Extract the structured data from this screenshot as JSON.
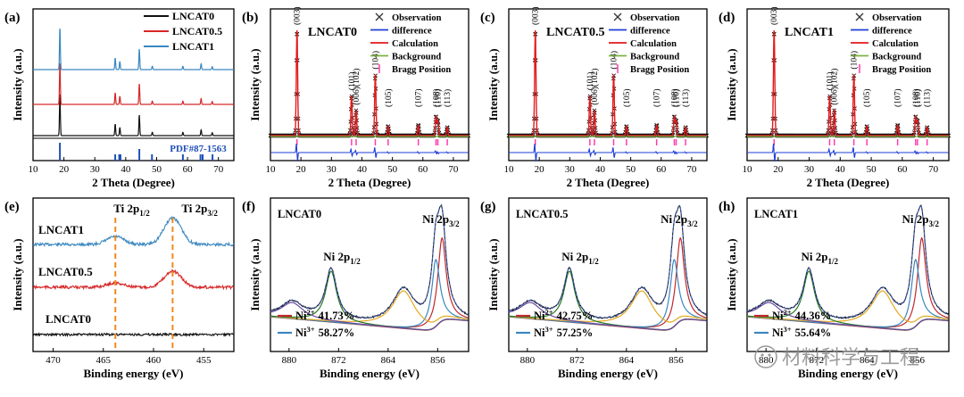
{
  "chart_data": [
    {
      "id": "a",
      "panel_label": "(a)",
      "type": "line",
      "xlabel": "2 Theta (Degree)",
      "ylabel": "Intensity (a.u.)",
      "xlim": [
        10,
        75
      ],
      "xticks": [
        10,
        20,
        30,
        40,
        50,
        60,
        70
      ],
      "legend": [
        "LNCAT0",
        "LNCAT0.5",
        "LNCAT1"
      ],
      "legend_colors": [
        "#111111",
        "#d62728",
        "#3a87c0"
      ],
      "reference_label": "PDF#87-1563",
      "reference_peaks": [
        18.7,
        36.6,
        37.9,
        38.3,
        44.4,
        48.5,
        58.5,
        64.2,
        64.9,
        68.1
      ],
      "series": [
        {
          "name": "LNCAT0",
          "color": "#111111",
          "peaks": [
            [
              18.7,
              1
            ],
            [
              36.6,
              0.28
            ],
            [
              38.1,
              0.2
            ],
            [
              44.4,
              0.5
            ],
            [
              48.6,
              0.08
            ],
            [
              58.5,
              0.08
            ],
            [
              64.4,
              0.14
            ],
            [
              68.0,
              0.07
            ]
          ]
        },
        {
          "name": "LNCAT0.5",
          "color": "#d62728",
          "peaks": [
            [
              18.7,
              1
            ],
            [
              36.6,
              0.28
            ],
            [
              38.1,
              0.2
            ],
            [
              44.4,
              0.5
            ],
            [
              48.6,
              0.08
            ],
            [
              58.5,
              0.08
            ],
            [
              64.4,
              0.14
            ],
            [
              68.0,
              0.07
            ]
          ]
        },
        {
          "name": "LNCAT1",
          "color": "#3a87c0",
          "peaks": [
            [
              18.7,
              1
            ],
            [
              36.6,
              0.28
            ],
            [
              38.1,
              0.2
            ],
            [
              44.4,
              0.5
            ],
            [
              48.6,
              0.08
            ],
            [
              58.5,
              0.08
            ],
            [
              64.4,
              0.14
            ],
            [
              68.0,
              0.07
            ]
          ]
        }
      ]
    },
    {
      "id": "b",
      "panel_label": "(b)",
      "type": "scatter",
      "sample": "LNCAT0",
      "xlabel": "2 Theta (Degree)",
      "ylabel": "Intensity (a.u.)",
      "xlim": [
        10,
        75
      ],
      "xticks": [
        10,
        20,
        30,
        40,
        50,
        60,
        70
      ],
      "legend": [
        "Observation",
        "difference",
        "Calculation",
        "Background",
        "Bragg Position"
      ],
      "peaks": [
        [
          "(003)",
          18.7,
          1.0
        ],
        [
          "(101)",
          36.6,
          0.38
        ],
        [
          "(006)(102)",
          38.1,
          0.24
        ],
        [
          "(104)",
          44.4,
          0.58
        ],
        [
          "(105)",
          48.6,
          0.09
        ],
        [
          "(107)",
          58.5,
          0.1
        ],
        [
          "(108)",
          64.3,
          0.18
        ],
        [
          "(110)",
          64.9,
          0.14
        ],
        [
          "(113)",
          68.0,
          0.08
        ]
      ],
      "hkl_labels": [
        "(003)",
        "(101)",
        "(006)(102)",
        "(104)",
        "(105)",
        "(107)",
        "(108)",
        "(110)",
        "(113)"
      ]
    },
    {
      "id": "c",
      "panel_label": "(c)",
      "type": "scatter",
      "sample": "LNCAT0.5",
      "xlabel": "2 Theta (Degree)",
      "ylabel": "Intensity (a.u.)",
      "xlim": [
        10,
        75
      ],
      "xticks": [
        10,
        20,
        30,
        40,
        50,
        60,
        70
      ],
      "legend": [
        "Observation",
        "difference",
        "Calculation",
        "Background",
        "Bragg Position"
      ],
      "peaks": [
        [
          "(003)",
          18.7,
          1.0
        ],
        [
          "(101)",
          36.6,
          0.38
        ],
        [
          "(006)(102)",
          38.1,
          0.24
        ],
        [
          "(104)",
          44.4,
          0.58
        ],
        [
          "(105)",
          48.6,
          0.09
        ],
        [
          "(107)",
          58.5,
          0.1
        ],
        [
          "(108)",
          64.3,
          0.18
        ],
        [
          "(110)",
          64.9,
          0.14
        ],
        [
          "(113)",
          68.0,
          0.08
        ]
      ],
      "hkl_labels": [
        "(003)",
        "(101)",
        "(006)(102)",
        "(104)",
        "(105)",
        "(107)",
        "(108)",
        "(110)",
        "(113)"
      ]
    },
    {
      "id": "d",
      "panel_label": "(d)",
      "type": "scatter",
      "sample": "LNCAT1",
      "xlabel": "2 Theta (Degree)",
      "ylabel": "Intensity (a.u.)",
      "xlim": [
        10,
        75
      ],
      "xticks": [
        10,
        20,
        30,
        40,
        50,
        60,
        70
      ],
      "legend": [
        "Observation",
        "difference",
        "Calculation",
        "Background",
        "Bragg Position"
      ],
      "peaks": [
        [
          "(003)",
          18.7,
          1.0
        ],
        [
          "(101)",
          36.6,
          0.38
        ],
        [
          "(006)(102)",
          38.1,
          0.24
        ],
        [
          "(104)",
          44.4,
          0.58
        ],
        [
          "(105)",
          48.6,
          0.09
        ],
        [
          "(107)",
          58.5,
          0.1
        ],
        [
          "(108)",
          64.3,
          0.18
        ],
        [
          "(110)",
          64.9,
          0.14
        ],
        [
          "(113)",
          68.0,
          0.08
        ]
      ],
      "hkl_labels": [
        "(003)",
        "(101)",
        "(006)(102)",
        "(104)",
        "(105)",
        "(107)",
        "(108)",
        "(110)",
        "(113)"
      ]
    },
    {
      "id": "e",
      "panel_label": "(e)",
      "type": "line",
      "xlabel": "Binding energy (eV)",
      "ylabel": "Intensity (a.u.)",
      "xlim": [
        472,
        452
      ],
      "xticks": [
        470,
        465,
        460,
        455
      ],
      "markers": [
        {
          "label": "Ti 2p",
          "sub": "1/2",
          "x": 463.8
        },
        {
          "label": "Ti 2p",
          "sub": "3/2",
          "x": 458.1
        }
      ],
      "series": [
        {
          "name": "LNCAT1",
          "color": "#3a87c0",
          "peaks": [
            [
              463.8,
              0.22
            ],
            [
              458.1,
              0.75
            ]
          ]
        },
        {
          "name": "LNCAT0.5",
          "color": "#d62728",
          "peaks": [
            [
              463.8,
              0.12
            ],
            [
              458.1,
              0.45
            ]
          ]
        },
        {
          "name": "LNCAT0",
          "color": "#111111",
          "peaks": []
        }
      ]
    },
    {
      "id": "f",
      "panel_label": "(f)",
      "type": "line",
      "sample": "LNCAT0",
      "xlabel": "Binding energy (eV)",
      "ylabel": "Intensity (a.u.)",
      "xlim": [
        883,
        851
      ],
      "xticks": [
        880,
        872,
        864,
        856
      ],
      "peak_labels": [
        {
          "label": "Ni 2p",
          "sub": "1/2",
          "x": 873.3
        },
        {
          "label": "Ni 2p",
          "sub": "3/2",
          "x": 855.6
        }
      ],
      "components": [
        {
          "name": "Ni2+",
          "pos": 855.3,
          "amp": 0.62
        },
        {
          "name": "Ni3+",
          "pos": 856.3,
          "amp": 0.5
        },
        {
          "name": "sat",
          "pos": 861.5,
          "amp": 0.28
        },
        {
          "name": "Ni 2p1/2",
          "pos": 873.2,
          "amp": 0.38
        },
        {
          "name": "sat2",
          "pos": 879.5,
          "amp": 0.12
        }
      ],
      "legend": [
        {
          "label": "Ni",
          "sup": "2+",
          "value": "41.73%",
          "color": "#c0282d"
        },
        {
          "label": "Ni",
          "sup": "3+",
          "value": "58.27%",
          "color": "#3a87c0"
        }
      ]
    },
    {
      "id": "g",
      "panel_label": "(g)",
      "type": "line",
      "sample": "LNCAT0.5",
      "xlabel": "Binding energy (eV)",
      "ylabel": "Intensity (a.u.)",
      "xlim": [
        883,
        851
      ],
      "xticks": [
        880,
        872,
        864,
        856
      ],
      "peak_labels": [
        {
          "label": "Ni 2p",
          "sub": "1/2",
          "x": 873.3
        },
        {
          "label": "Ni 2p",
          "sub": "3/2",
          "x": 855.6
        }
      ],
      "components": [
        {
          "name": "Ni2+",
          "pos": 855.3,
          "amp": 0.62
        },
        {
          "name": "Ni3+",
          "pos": 856.3,
          "amp": 0.5
        },
        {
          "name": "sat",
          "pos": 861.5,
          "amp": 0.28
        },
        {
          "name": "Ni 2p1/2",
          "pos": 873.2,
          "amp": 0.38
        },
        {
          "name": "sat2",
          "pos": 879.5,
          "amp": 0.12
        }
      ],
      "legend": [
        {
          "label": "Ni",
          "sup": "2+",
          "value": "42.75%",
          "color": "#c0282d"
        },
        {
          "label": "Ni",
          "sup": "3+",
          "value": "57.25%",
          "color": "#3a87c0"
        }
      ]
    },
    {
      "id": "h",
      "panel_label": "(h)",
      "type": "line",
      "sample": "LNCAT1",
      "xlabel": "Binding energy (eV)",
      "ylabel": "Intensity (a.u.)",
      "xlim": [
        883,
        851
      ],
      "xticks": [
        880,
        872,
        864,
        856
      ],
      "peak_labels": [
        {
          "label": "Ni 2p",
          "sub": "1/2",
          "x": 873.3
        },
        {
          "label": "Ni 2p",
          "sub": "3/2",
          "x": 855.6
        }
      ],
      "components": [
        {
          "name": "Ni2+",
          "pos": 855.3,
          "amp": 0.62
        },
        {
          "name": "Ni3+",
          "pos": 856.3,
          "amp": 0.5
        },
        {
          "name": "sat",
          "pos": 861.5,
          "amp": 0.28
        },
        {
          "name": "Ni 2p1/2",
          "pos": 873.2,
          "amp": 0.38
        },
        {
          "name": "sat2",
          "pos": 879.5,
          "amp": 0.12
        }
      ],
      "legend": [
        {
          "label": "Ni",
          "sup": "2+",
          "value": "44.36%",
          "color": "#c0282d"
        },
        {
          "label": "Ni",
          "sup": "3+",
          "value": "55.64%",
          "color": "#3a87c0"
        }
      ]
    }
  ],
  "watermark": {
    "text": "材料科学与工程"
  }
}
